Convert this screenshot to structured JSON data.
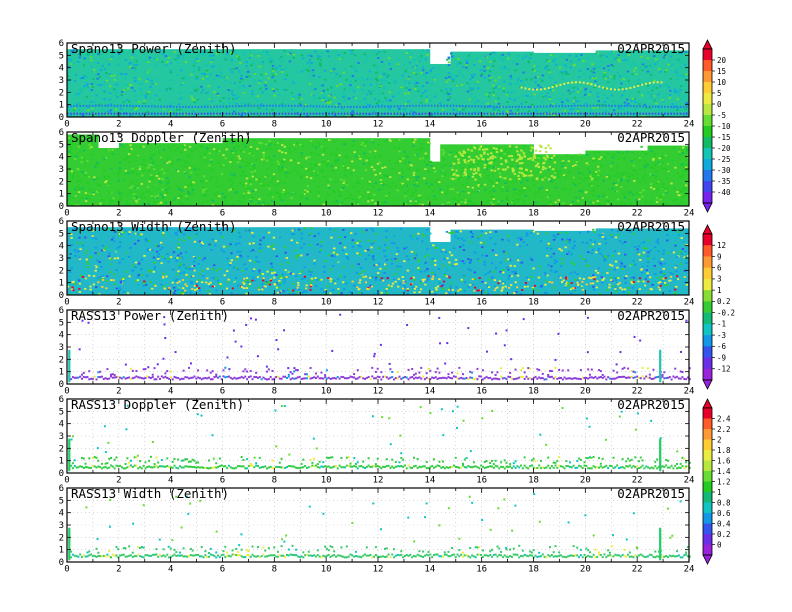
{
  "date_label": "02APR2015",
  "panels": [
    {
      "title": "Spano13 Power (Zenith)",
      "kind": "full",
      "base": "#24c7a0",
      "palette": "A"
    },
    {
      "title": "Spano13 Doppler (Zenith)",
      "kind": "full",
      "base": "#33cc33",
      "palette": "A"
    },
    {
      "title": "Spano13 Width (Zenith)",
      "kind": "full",
      "base": "#22b8c8",
      "palette": "B"
    },
    {
      "title": "RASS13 Power (Zenith)",
      "kind": "rass",
      "base": "#8c3cd8",
      "palette": "B"
    },
    {
      "title": "RASS13 Doppler (Zenith)",
      "kind": "rass",
      "base": "#33cc44",
      "palette": "C"
    },
    {
      "title": "RASS13 Width (Zenith)",
      "kind": "rass",
      "base": "#38c96a",
      "palette": "C"
    }
  ],
  "colorbars": [
    {
      "name": "colorbar-a",
      "labels": [
        "20",
        "15",
        "10",
        "5",
        "0",
        "-5",
        "-10",
        "-15",
        "-20",
        "-25",
        "-30",
        "-35",
        "-40"
      ],
      "colors": [
        "#e8002a",
        "#ff5a28",
        "#ff9933",
        "#ffcc33",
        "#ecec40",
        "#b8e840",
        "#66dd33",
        "#22cc22",
        "#11bb66",
        "#11c4b4",
        "#11aadd",
        "#2277ee",
        "#4444ee",
        "#7722ee"
      ]
    },
    {
      "name": "colorbar-b",
      "labels": [
        "12",
        "9",
        "6",
        "3",
        "1",
        "0.2",
        "-0.2",
        "-1",
        "-3",
        "-6",
        "-9",
        "-12"
      ],
      "colors": [
        "#e8002a",
        "#ff5a28",
        "#ff9933",
        "#ffcc33",
        "#ecec40",
        "#88dd33",
        "#33cc33",
        "#11bb77",
        "#11c4c4",
        "#1199e8",
        "#3355ee",
        "#6a2ee8",
        "#9922dd"
      ]
    },
    {
      "name": "colorbar-c",
      "labels": [
        "2.4",
        "2.2",
        "2",
        "1.8",
        "1.6",
        "1.4",
        "1.2",
        "1",
        "0.8",
        "0.6",
        "0.4",
        "0.2",
        "0"
      ],
      "colors": [
        "#e8002a",
        "#ff5a28",
        "#ff9933",
        "#ffcc33",
        "#ecec40",
        "#b8e840",
        "#66dd33",
        "#22cc22",
        "#11bb77",
        "#11c4c4",
        "#1199e8",
        "#3355ee",
        "#6a2ee8",
        "#9922dd"
      ]
    }
  ],
  "chart_data": [
    {
      "type": "heatmap",
      "title": "Spano13 Power (Zenith)",
      "xlabel": "",
      "ylabel": "",
      "xlim": [
        0,
        24
      ],
      "ylim": [
        0,
        6
      ],
      "x_ticks": [
        "0",
        "2",
        "4",
        "6",
        "8",
        "10",
        "12",
        "14",
        "16",
        "18",
        "20",
        "22",
        "24"
      ],
      "y_ticks": [
        "0",
        "1",
        "2",
        "3",
        "4",
        "5",
        "6"
      ],
      "colorbar": "colorbar-a"
    },
    {
      "type": "heatmap",
      "title": "Spano13 Doppler (Zenith)",
      "xlabel": "",
      "ylabel": "",
      "xlim": [
        0,
        24
      ],
      "ylim": [
        0,
        6
      ],
      "x_ticks": [
        "0",
        "2",
        "4",
        "6",
        "8",
        "10",
        "12",
        "14",
        "16",
        "18",
        "20",
        "22",
        "24"
      ],
      "y_ticks": [
        "0",
        "1",
        "2",
        "3",
        "4",
        "5",
        "6"
      ],
      "colorbar": "colorbar-a"
    },
    {
      "type": "heatmap",
      "title": "Spano13 Width (Zenith)",
      "xlabel": "",
      "ylabel": "",
      "xlim": [
        0,
        24
      ],
      "ylim": [
        0,
        6
      ],
      "x_ticks": [
        "0",
        "2",
        "4",
        "6",
        "8",
        "10",
        "12",
        "14",
        "16",
        "18",
        "20",
        "22",
        "24"
      ],
      "y_ticks": [
        "0",
        "1",
        "2",
        "3",
        "4",
        "5",
        "6"
      ],
      "colorbar": "colorbar-b"
    },
    {
      "type": "heatmap",
      "title": "RASS13 Power (Zenith)",
      "xlabel": "",
      "ylabel": "",
      "xlim": [
        0,
        24
      ],
      "ylim": [
        0,
        6
      ],
      "x_ticks": [
        "0",
        "2",
        "4",
        "6",
        "8",
        "10",
        "12",
        "14",
        "16",
        "18",
        "20",
        "22",
        "24"
      ],
      "y_ticks": [
        "0",
        "1",
        "2",
        "3",
        "4",
        "5",
        "6"
      ],
      "colorbar": "colorbar-b"
    },
    {
      "type": "heatmap",
      "title": "RASS13 Doppler (Zenith)",
      "xlabel": "",
      "ylabel": "",
      "xlim": [
        0,
        24
      ],
      "ylim": [
        0,
        6
      ],
      "x_ticks": [
        "0",
        "2",
        "4",
        "6",
        "8",
        "10",
        "12",
        "14",
        "16",
        "18",
        "20",
        "22",
        "24"
      ],
      "y_ticks": [
        "0",
        "1",
        "2",
        "3",
        "4",
        "5",
        "6"
      ],
      "colorbar": "colorbar-c"
    },
    {
      "type": "heatmap",
      "title": "RASS13 Width (Zenith)",
      "xlabel": "",
      "ylabel": "",
      "xlim": [
        0,
        24
      ],
      "ylim": [
        0,
        6
      ],
      "x_ticks": [
        "0",
        "2",
        "4",
        "6",
        "8",
        "10",
        "12",
        "14",
        "16",
        "18",
        "20",
        "22",
        "24"
      ],
      "y_ticks": [
        "0",
        "1",
        "2",
        "3",
        "4",
        "5",
        "6"
      ],
      "colorbar": "colorbar-c"
    }
  ]
}
